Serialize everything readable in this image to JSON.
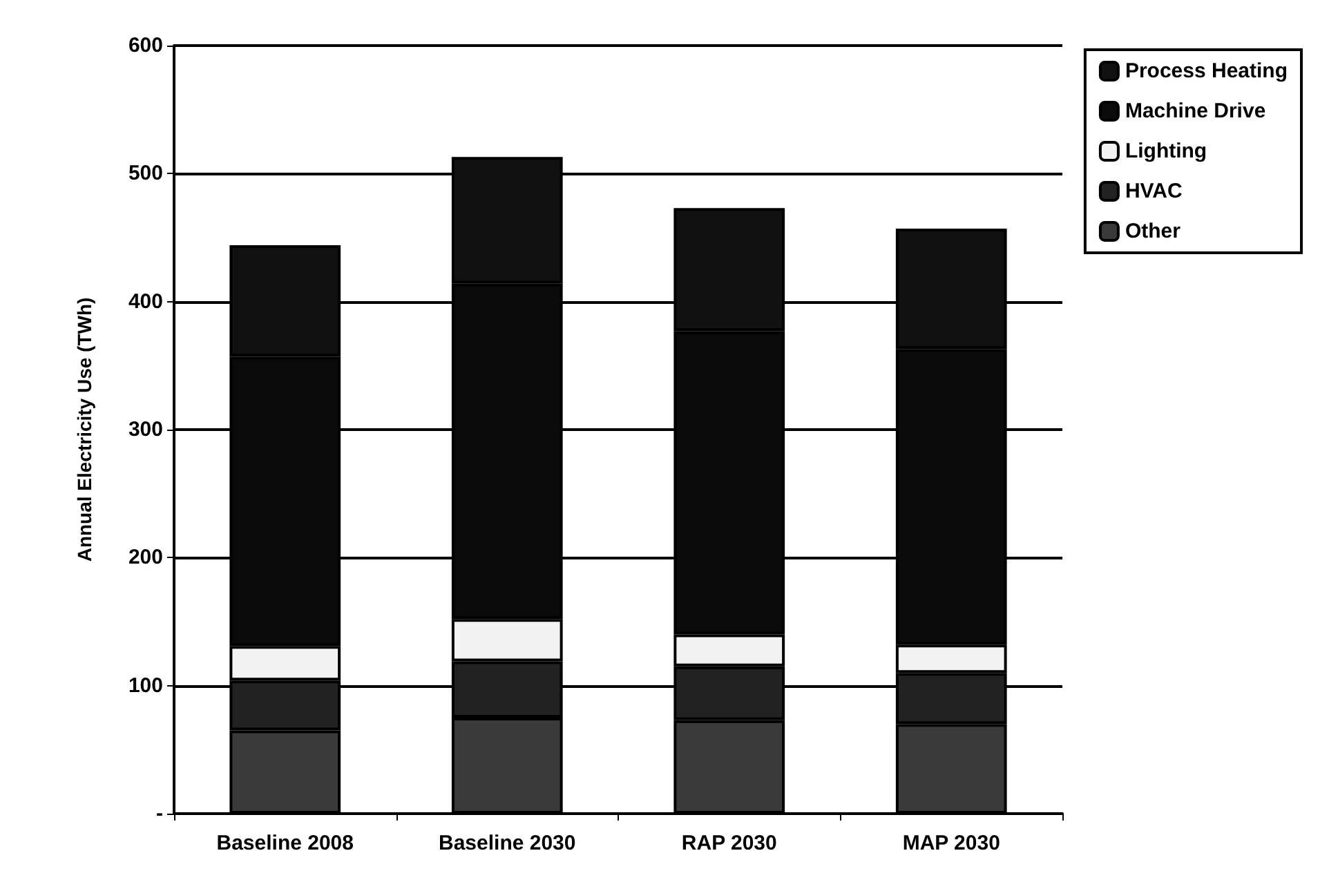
{
  "chart_data": {
    "type": "bar",
    "stacked": true,
    "ylabel": "Annual Electricity Use (TWh)",
    "categories": [
      "Baseline 2008",
      "Baseline 2030",
      "RAP 2030",
      "MAP 2030"
    ],
    "series": [
      {
        "name": "Other",
        "color": "#3a3a3a",
        "values": [
          65,
          75,
          73,
          70
        ]
      },
      {
        "name": "HVAC",
        "color": "#222222",
        "values": [
          39,
          44,
          42,
          40
        ]
      },
      {
        "name": "Lighting",
        "color": "#f2f2f2",
        "values": [
          27,
          33,
          25,
          22
        ]
      },
      {
        "name": "Machine Drive",
        "color": "#0a0a0a",
        "values": [
          226,
          262,
          237,
          231
        ]
      },
      {
        "name": "Process Heating",
        "color": "#111111",
        "values": [
          87,
          99,
          96,
          94
        ]
      }
    ],
    "ylim": [
      0,
      600
    ],
    "yticks": [
      {
        "value": 0,
        "label": "-"
      },
      100,
      200,
      300,
      400,
      500,
      600
    ],
    "grid": "y",
    "legend": "top right"
  }
}
